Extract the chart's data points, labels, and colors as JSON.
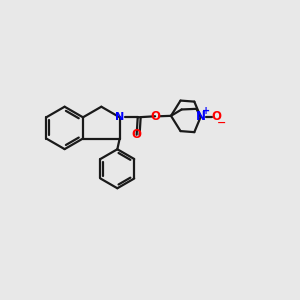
{
  "bg_color": "#e8e8e8",
  "bond_color": "#1a1a1a",
  "N_color": "#0000ff",
  "O_color": "#ff0000",
  "line_width": 1.6,
  "figsize": [
    3.0,
    3.0
  ],
  "dpi": 100,
  "xlim": [
    0,
    10
  ],
  "ylim": [
    0,
    10
  ]
}
